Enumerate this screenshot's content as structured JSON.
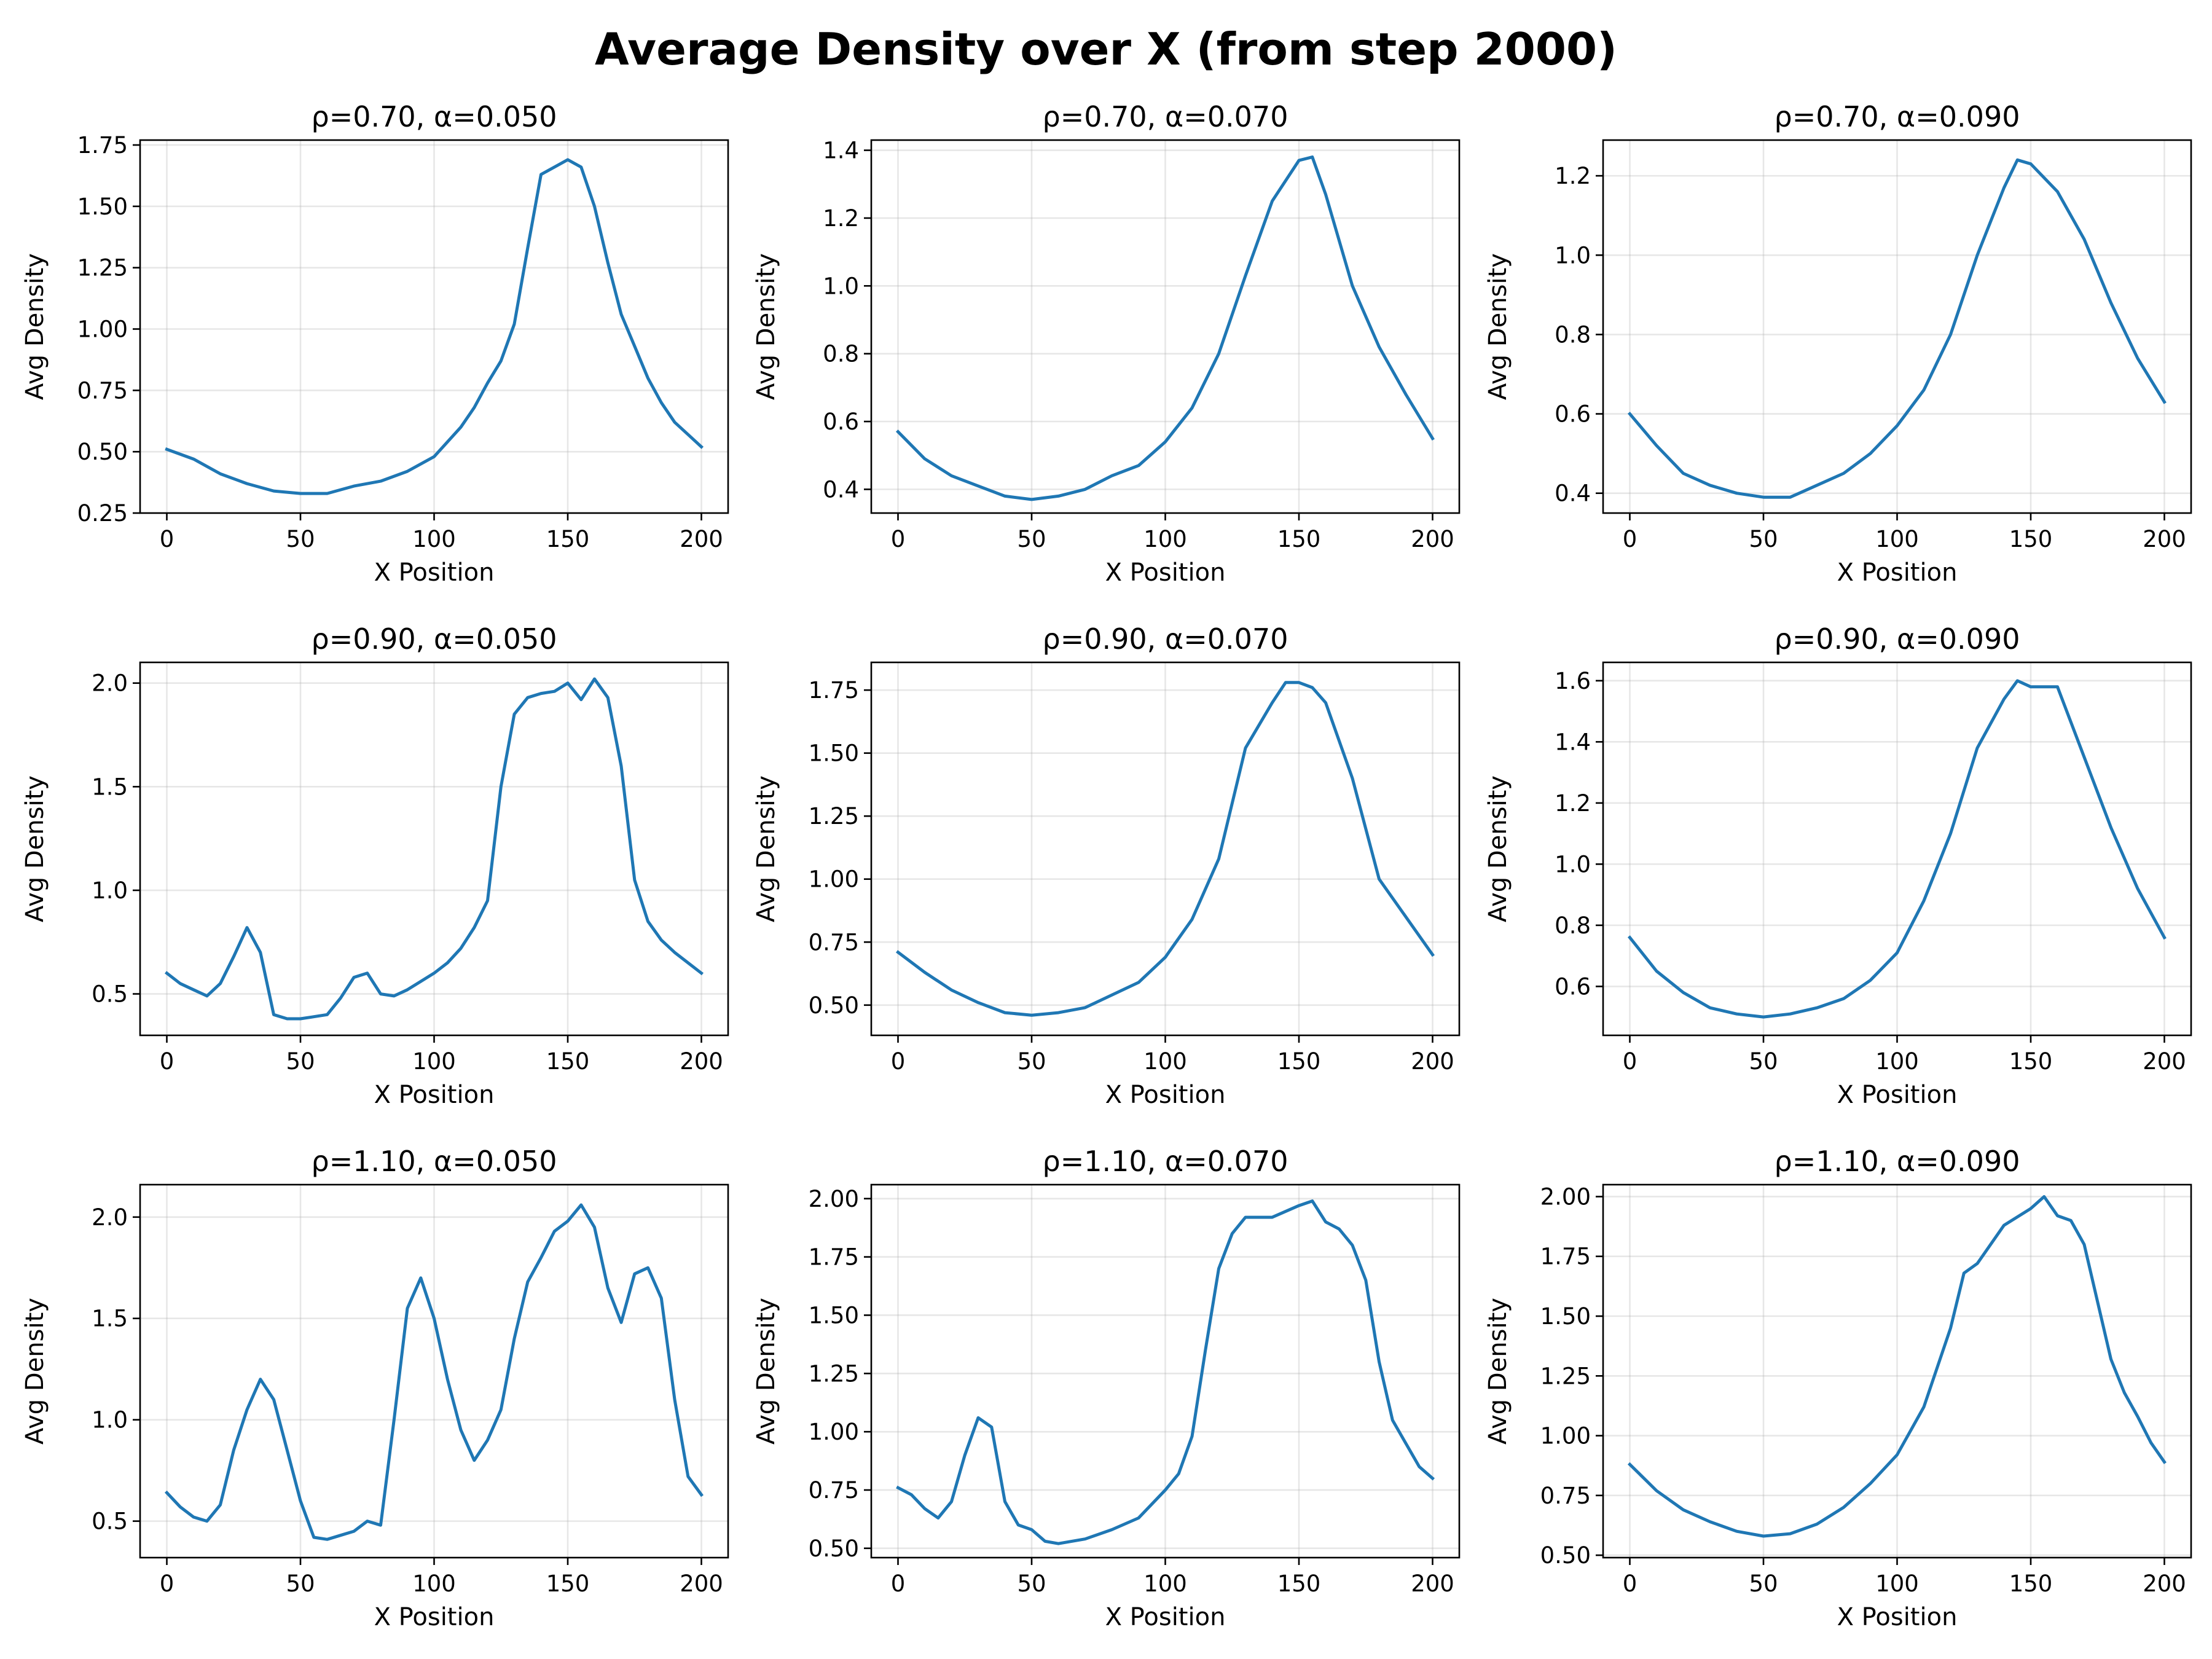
{
  "figure": {
    "suptitle": "Average Density over X (from step 2000)",
    "line_color": "#1f77b4",
    "grid": true
  },
  "chart_data": [
    {
      "type": "line",
      "title": "ρ=0.70, α=0.050",
      "xlabel": "X Position",
      "ylabel": "Avg Density",
      "xlim": [
        -10,
        210
      ],
      "ylim": [
        0.25,
        1.77
      ],
      "xticks": [
        0,
        50,
        100,
        150,
        200
      ],
      "yticks": [
        0.25,
        0.5,
        0.75,
        1.0,
        1.25,
        1.5,
        1.75
      ],
      "ytick_labels": [
        "0.25",
        "0.50",
        "0.75",
        "1.00",
        "1.25",
        "1.50",
        "1.75"
      ],
      "x": [
        0,
        10,
        20,
        30,
        40,
        50,
        60,
        70,
        80,
        90,
        100,
        110,
        115,
        120,
        125,
        130,
        135,
        140,
        145,
        150,
        155,
        160,
        165,
        170,
        175,
        180,
        185,
        190,
        195,
        200
      ],
      "y": [
        0.51,
        0.47,
        0.41,
        0.37,
        0.34,
        0.33,
        0.33,
        0.36,
        0.38,
        0.42,
        0.48,
        0.6,
        0.68,
        0.78,
        0.87,
        1.02,
        1.33,
        1.63,
        1.66,
        1.69,
        1.66,
        1.5,
        1.27,
        1.06,
        0.93,
        0.8,
        0.7,
        0.62,
        0.57,
        0.52
      ]
    },
    {
      "type": "line",
      "title": "ρ=0.70, α=0.070",
      "xlabel": "X Position",
      "ylabel": "Avg Density",
      "xlim": [
        -10,
        210
      ],
      "ylim": [
        0.33,
        1.43
      ],
      "xticks": [
        0,
        50,
        100,
        150,
        200
      ],
      "yticks": [
        0.4,
        0.6,
        0.8,
        1.0,
        1.2,
        1.4
      ],
      "ytick_labels": [
        "0.4",
        "0.6",
        "0.8",
        "1.0",
        "1.2",
        "1.4"
      ],
      "x": [
        0,
        10,
        20,
        30,
        40,
        50,
        60,
        70,
        80,
        90,
        100,
        110,
        120,
        130,
        140,
        150,
        155,
        160,
        170,
        180,
        190,
        200
      ],
      "y": [
        0.57,
        0.49,
        0.44,
        0.41,
        0.38,
        0.37,
        0.38,
        0.4,
        0.44,
        0.47,
        0.54,
        0.64,
        0.8,
        1.03,
        1.25,
        1.37,
        1.38,
        1.27,
        1.0,
        0.82,
        0.68,
        0.55
      ]
    },
    {
      "type": "line",
      "title": "ρ=0.70, α=0.090",
      "xlabel": "X Position",
      "ylabel": "Avg Density",
      "xlim": [
        -10,
        210
      ],
      "ylim": [
        0.35,
        1.29
      ],
      "xticks": [
        0,
        50,
        100,
        150,
        200
      ],
      "yticks": [
        0.4,
        0.6,
        0.8,
        1.0,
        1.2
      ],
      "ytick_labels": [
        "0.4",
        "0.6",
        "0.8",
        "1.0",
        "1.2"
      ],
      "x": [
        0,
        10,
        20,
        30,
        40,
        50,
        60,
        70,
        80,
        90,
        100,
        110,
        120,
        130,
        140,
        145,
        150,
        160,
        170,
        180,
        190,
        200
      ],
      "y": [
        0.6,
        0.52,
        0.45,
        0.42,
        0.4,
        0.39,
        0.39,
        0.42,
        0.45,
        0.5,
        0.57,
        0.66,
        0.8,
        1.0,
        1.17,
        1.24,
        1.23,
        1.16,
        1.04,
        0.88,
        0.74,
        0.63
      ]
    },
    {
      "type": "line",
      "title": "ρ=0.90, α=0.050",
      "xlabel": "X Position",
      "ylabel": "Avg Density",
      "xlim": [
        -10,
        210
      ],
      "ylim": [
        0.3,
        2.1
      ],
      "xticks": [
        0,
        50,
        100,
        150,
        200
      ],
      "yticks": [
        0.5,
        1.0,
        1.5,
        2.0
      ],
      "ytick_labels": [
        "0.5",
        "1.0",
        "1.5",
        "2.0"
      ],
      "x": [
        0,
        5,
        10,
        15,
        20,
        25,
        30,
        35,
        40,
        45,
        50,
        55,
        60,
        65,
        70,
        75,
        80,
        85,
        90,
        95,
        100,
        105,
        110,
        115,
        120,
        125,
        130,
        135,
        140,
        145,
        150,
        155,
        160,
        165,
        170,
        175,
        180,
        185,
        190,
        195,
        200
      ],
      "y": [
        0.6,
        0.55,
        0.52,
        0.49,
        0.55,
        0.68,
        0.82,
        0.7,
        0.4,
        0.38,
        0.38,
        0.39,
        0.4,
        0.48,
        0.58,
        0.6,
        0.5,
        0.49,
        0.52,
        0.56,
        0.6,
        0.65,
        0.72,
        0.82,
        0.95,
        1.5,
        1.85,
        1.93,
        1.95,
        1.96,
        2.0,
        1.92,
        2.02,
        1.93,
        1.6,
        1.05,
        0.85,
        0.76,
        0.7,
        0.65,
        0.6
      ]
    },
    {
      "type": "line",
      "title": "ρ=0.90, α=0.070",
      "xlabel": "X Position",
      "ylabel": "Avg Density",
      "xlim": [
        -10,
        210
      ],
      "ylim": [
        0.38,
        1.86
      ],
      "xticks": [
        0,
        50,
        100,
        150,
        200
      ],
      "yticks": [
        0.5,
        0.75,
        1.0,
        1.25,
        1.5,
        1.75
      ],
      "ytick_labels": [
        "0.50",
        "0.75",
        "1.00",
        "1.25",
        "1.50",
        "1.75"
      ],
      "x": [
        0,
        10,
        20,
        30,
        40,
        50,
        60,
        70,
        80,
        90,
        100,
        110,
        120,
        130,
        140,
        145,
        150,
        155,
        160,
        170,
        180,
        190,
        200
      ],
      "y": [
        0.71,
        0.63,
        0.56,
        0.51,
        0.47,
        0.46,
        0.47,
        0.49,
        0.54,
        0.59,
        0.69,
        0.84,
        1.08,
        1.52,
        1.7,
        1.78,
        1.78,
        1.76,
        1.7,
        1.4,
        1.0,
        0.85,
        0.7
      ]
    },
    {
      "type": "line",
      "title": "ρ=0.90, α=0.090",
      "xlabel": "X Position",
      "ylabel": "Avg Density",
      "xlim": [
        -10,
        210
      ],
      "ylim": [
        0.44,
        1.66
      ],
      "xticks": [
        0,
        50,
        100,
        150,
        200
      ],
      "yticks": [
        0.6,
        0.8,
        1.0,
        1.2,
        1.4,
        1.6
      ],
      "ytick_labels": [
        "0.6",
        "0.8",
        "1.0",
        "1.2",
        "1.4",
        "1.6"
      ],
      "x": [
        0,
        10,
        20,
        30,
        40,
        50,
        60,
        70,
        80,
        90,
        100,
        110,
        120,
        130,
        140,
        145,
        150,
        160,
        170,
        180,
        190,
        200
      ],
      "y": [
        0.76,
        0.65,
        0.58,
        0.53,
        0.51,
        0.5,
        0.51,
        0.53,
        0.56,
        0.62,
        0.71,
        0.88,
        1.1,
        1.38,
        1.54,
        1.6,
        1.58,
        1.58,
        1.35,
        1.12,
        0.92,
        0.76
      ]
    },
    {
      "type": "line",
      "title": "ρ=1.10, α=0.050",
      "xlabel": "X Position",
      "ylabel": "Avg Density",
      "xlim": [
        -10,
        210
      ],
      "ylim": [
        0.32,
        2.16
      ],
      "xticks": [
        0,
        50,
        100,
        150,
        200
      ],
      "yticks": [
        0.5,
        1.0,
        1.5,
        2.0
      ],
      "ytick_labels": [
        "0.5",
        "1.0",
        "1.5",
        "2.0"
      ],
      "x": [
        0,
        5,
        10,
        15,
        20,
        25,
        30,
        35,
        40,
        45,
        50,
        55,
        60,
        65,
        70,
        75,
        80,
        85,
        90,
        95,
        100,
        105,
        110,
        115,
        120,
        125,
        130,
        135,
        140,
        145,
        150,
        155,
        160,
        165,
        170,
        175,
        180,
        185,
        190,
        195,
        200
      ],
      "y": [
        0.64,
        0.57,
        0.52,
        0.5,
        0.58,
        0.85,
        1.05,
        1.2,
        1.1,
        0.85,
        0.6,
        0.42,
        0.41,
        0.43,
        0.45,
        0.5,
        0.48,
        1.0,
        1.55,
        1.7,
        1.5,
        1.2,
        0.95,
        0.8,
        0.9,
        1.05,
        1.4,
        1.68,
        1.8,
        1.93,
        1.98,
        2.06,
        1.95,
        1.65,
        1.48,
        1.72,
        1.75,
        1.6,
        1.1,
        0.72,
        0.63
      ]
    },
    {
      "type": "line",
      "title": "ρ=1.10, α=0.070",
      "xlabel": "X Position",
      "ylabel": "Avg Density",
      "xlim": [
        -10,
        210
      ],
      "ylim": [
        0.46,
        2.06
      ],
      "xticks": [
        0,
        50,
        100,
        150,
        200
      ],
      "yticks": [
        0.5,
        0.75,
        1.0,
        1.25,
        1.5,
        1.75,
        2.0
      ],
      "ytick_labels": [
        "0.50",
        "0.75",
        "1.00",
        "1.25",
        "1.50",
        "1.75",
        "2.00"
      ],
      "x": [
        0,
        5,
        10,
        15,
        20,
        25,
        30,
        35,
        40,
        45,
        50,
        55,
        60,
        70,
        80,
        90,
        100,
        105,
        110,
        115,
        120,
        125,
        130,
        140,
        150,
        155,
        160,
        165,
        170,
        175,
        180,
        185,
        190,
        195,
        200
      ],
      "y": [
        0.76,
        0.73,
        0.67,
        0.63,
        0.7,
        0.9,
        1.06,
        1.02,
        0.7,
        0.6,
        0.58,
        0.53,
        0.52,
        0.54,
        0.58,
        0.63,
        0.75,
        0.82,
        0.98,
        1.35,
        1.7,
        1.85,
        1.92,
        1.92,
        1.97,
        1.99,
        1.9,
        1.87,
        1.8,
        1.65,
        1.3,
        1.05,
        0.95,
        0.85,
        0.8
      ]
    },
    {
      "type": "line",
      "title": "ρ=1.10, α=0.090",
      "xlabel": "X Position",
      "ylabel": "Avg Density",
      "xlim": [
        -10,
        210
      ],
      "ylim": [
        0.49,
        2.05
      ],
      "xticks": [
        0,
        50,
        100,
        150,
        200
      ],
      "yticks": [
        0.5,
        0.75,
        1.0,
        1.25,
        1.5,
        1.75,
        2.0
      ],
      "ytick_labels": [
        "0.50",
        "0.75",
        "1.00",
        "1.25",
        "1.50",
        "1.75",
        "2.00"
      ],
      "x": [
        0,
        10,
        20,
        30,
        40,
        50,
        60,
        70,
        80,
        90,
        100,
        110,
        120,
        125,
        130,
        140,
        150,
        155,
        160,
        165,
        170,
        180,
        185,
        190,
        195,
        200
      ],
      "y": [
        0.88,
        0.77,
        0.69,
        0.64,
        0.6,
        0.58,
        0.59,
        0.63,
        0.7,
        0.8,
        0.92,
        1.12,
        1.45,
        1.68,
        1.72,
        1.88,
        1.95,
        2.0,
        1.92,
        1.9,
        1.8,
        1.32,
        1.18,
        1.08,
        0.97,
        0.89
      ]
    }
  ]
}
